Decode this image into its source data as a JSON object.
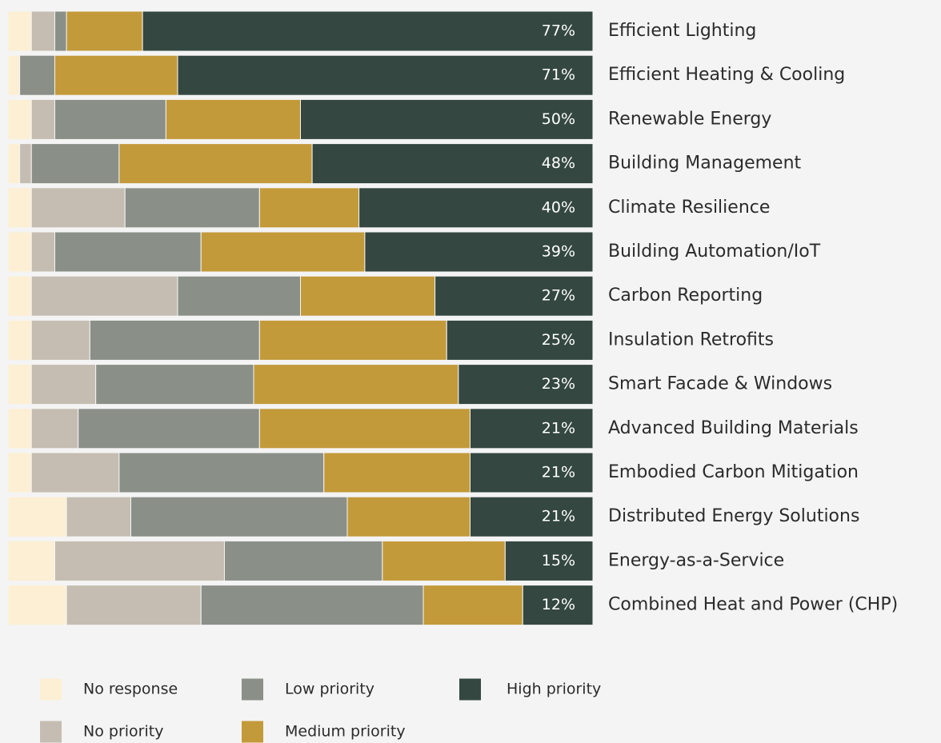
{
  "chart_data": {
    "type": "stacked-bar-horizontal",
    "categories": [
      "Efficient Lighting",
      "Efficient Heating & Cooling",
      "Renewable Energy",
      "Building Management",
      "Climate Resilience",
      "Building Automation/IoT",
      "Carbon Reporting",
      "Insulation Retrofits",
      "Smart Facade & Windows",
      "Advanced Building Materials",
      "Embodied Carbon Mitigation",
      "Distributed Energy Solutions",
      "Energy-as-a-Service",
      "Combined Heat and Power (CHP)"
    ],
    "xlim": [
      0,
      100
    ],
    "series": [
      {
        "name": "No response",
        "color": "#fdefd3",
        "values": [
          4,
          2,
          4,
          2,
          4,
          4,
          4,
          4,
          4,
          4,
          4,
          10,
          8,
          10
        ]
      },
      {
        "name": "No priority",
        "color": "#c5bdb1",
        "values": [
          4,
          0,
          4,
          2,
          16,
          4,
          25,
          10,
          11,
          8,
          15,
          11,
          29,
          23
        ]
      },
      {
        "name": "Low priority",
        "color": "#8a8f88",
        "values": [
          2,
          6,
          19,
          15,
          23,
          25,
          21,
          29,
          27,
          31,
          35,
          37,
          27,
          38
        ]
      },
      {
        "name": "Medium priority",
        "color": "#c39a3a",
        "values": [
          13,
          21,
          23,
          33,
          17,
          28,
          23,
          32,
          35,
          36,
          25,
          21,
          21,
          17
        ]
      },
      {
        "name": "High priority",
        "color": "#344741",
        "values": [
          77,
          71,
          50,
          48,
          40,
          39,
          27,
          25,
          23,
          21,
          21,
          21,
          15,
          12
        ],
        "value_labels": [
          "77%",
          "71%",
          "50%",
          "48%",
          "40%",
          "39%",
          "27%",
          "25%",
          "23%",
          "21%",
          "21%",
          "21%",
          "15%",
          "12%"
        ]
      }
    ]
  }
}
